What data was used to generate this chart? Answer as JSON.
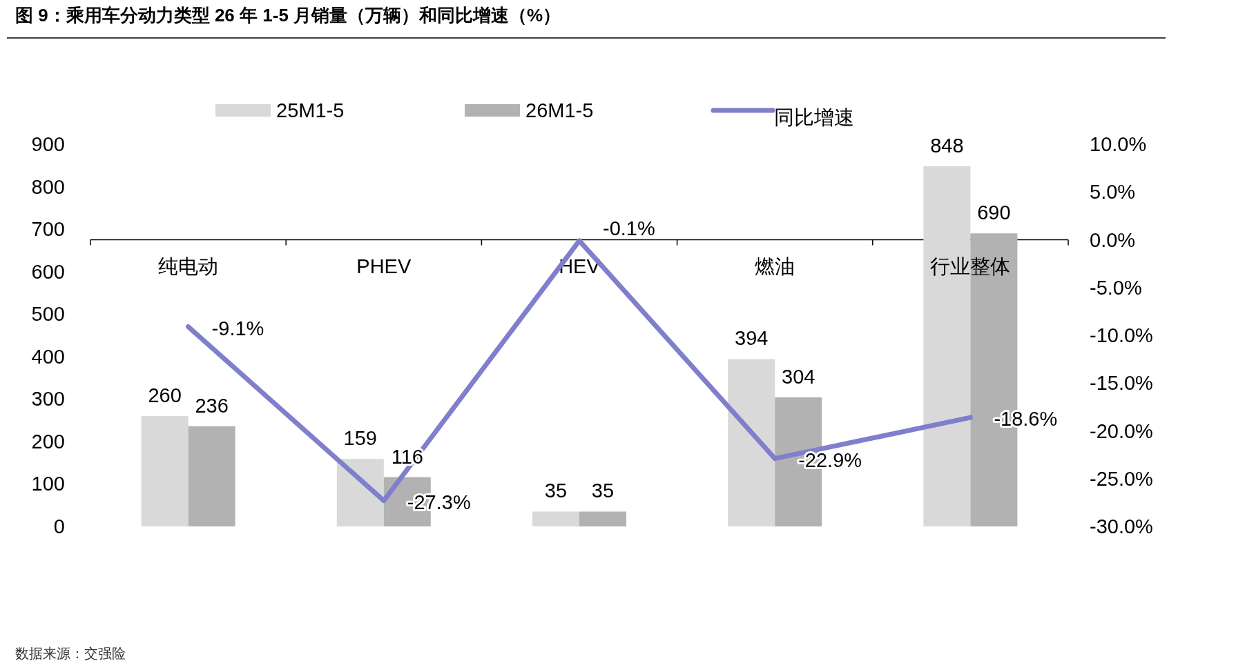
{
  "chart_data": {
    "type": "bar",
    "title": "图 9：乘用车分动力类型 26 年 1-5 月销量（万辆）和同比增速（%）",
    "annotations": [
      "数据来源：交强险"
    ],
    "categories": [
      "纯电动",
      "PHEV",
      "HEV",
      "燃油",
      "行业整体"
    ],
    "series": [
      {
        "name": "25M1-5",
        "color": "#d9d9d9",
        "values": [
          260,
          159,
          35,
          394,
          848
        ],
        "value_labels": [
          "260",
          "159",
          "35",
          "394",
          "848"
        ]
      },
      {
        "name": "26M1-5",
        "color": "#b2b2b2",
        "values": [
          236,
          116,
          35,
          304,
          690
        ],
        "value_labels": [
          "236",
          "116",
          "35",
          "304",
          "690"
        ]
      },
      {
        "name": "同比增速",
        "type": "line",
        "axis": "y2",
        "color": "#7f7fcc",
        "values": [
          -9.1,
          -27.3,
          -0.1,
          -22.9,
          -18.6
        ],
        "value_labels": [
          "-9.1%",
          "-27.3%",
          "-0.1%",
          "-22.9%",
          "-18.6%"
        ]
      }
    ],
    "ylim": [
      0,
      900
    ],
    "yticks": [
      0,
      100,
      200,
      300,
      400,
      500,
      600,
      700,
      800,
      900
    ],
    "y2lim": [
      -30,
      10
    ],
    "y2ticks": [
      {
        "value": 10,
        "label": "10.0%"
      },
      {
        "value": 5,
        "label": "5.0%"
      },
      {
        "value": 0,
        "label": "0.0%"
      },
      {
        "value": -5,
        "label": "-5.0%"
      },
      {
        "value": -10,
        "label": "-10.0%"
      },
      {
        "value": -15,
        "label": "-15.0%"
      },
      {
        "value": -20,
        "label": "-20.0%"
      },
      {
        "value": -25,
        "label": "-25.0%"
      },
      {
        "value": -30,
        "label": "-30.0%"
      }
    ],
    "legend": "top",
    "grid": false
  }
}
